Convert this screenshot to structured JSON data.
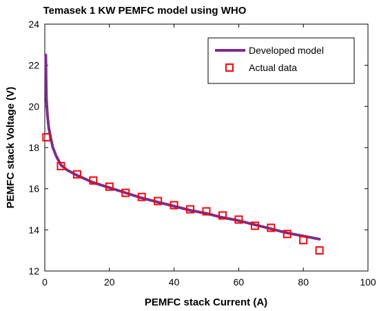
{
  "chart_data": {
    "type": "line",
    "title": "Temasek 1 KW PEMFC model using WHO",
    "xlabel": "PEMFC stack Current (A)",
    "ylabel": "PEMFC stack Voltage (V)",
    "xlim": [
      0,
      100
    ],
    "ylim": [
      12,
      24
    ],
    "xticks": [
      "0",
      "20",
      "40",
      "60",
      "80",
      "100"
    ],
    "yticks": [
      "12",
      "14",
      "16",
      "18",
      "20",
      "22",
      "24"
    ],
    "grid": false,
    "legend_position": "top-right",
    "series": [
      {
        "name": "Developed model",
        "kind": "line",
        "color": "#7B2D8E",
        "x": [
          0.3,
          0.5,
          0.8,
          1.2,
          1.8,
          2.5,
          3.5,
          5,
          7,
          10,
          15,
          20,
          25,
          30,
          35,
          40,
          45,
          50,
          55,
          60,
          65,
          70,
          75,
          80,
          85
        ],
        "y": [
          22.5,
          20.4,
          19.6,
          19.0,
          18.5,
          18.0,
          17.6,
          17.15,
          16.9,
          16.65,
          16.3,
          16.05,
          15.8,
          15.55,
          15.35,
          15.15,
          14.95,
          14.8,
          14.6,
          14.45,
          14.25,
          14.05,
          13.85,
          13.7,
          13.55
        ]
      },
      {
        "name": "Actual data",
        "kind": "marker",
        "marker": "square",
        "color": "#FF0000",
        "x": [
          0.5,
          5,
          10,
          15,
          20,
          25,
          30,
          35,
          40,
          45,
          50,
          55,
          60,
          65,
          70,
          75,
          80,
          85
        ],
        "y": [
          18.5,
          17.1,
          16.7,
          16.4,
          16.1,
          15.8,
          15.6,
          15.4,
          15.2,
          15.0,
          14.9,
          14.7,
          14.5,
          14.2,
          14.1,
          13.8,
          13.5,
          13.0
        ]
      }
    ]
  }
}
